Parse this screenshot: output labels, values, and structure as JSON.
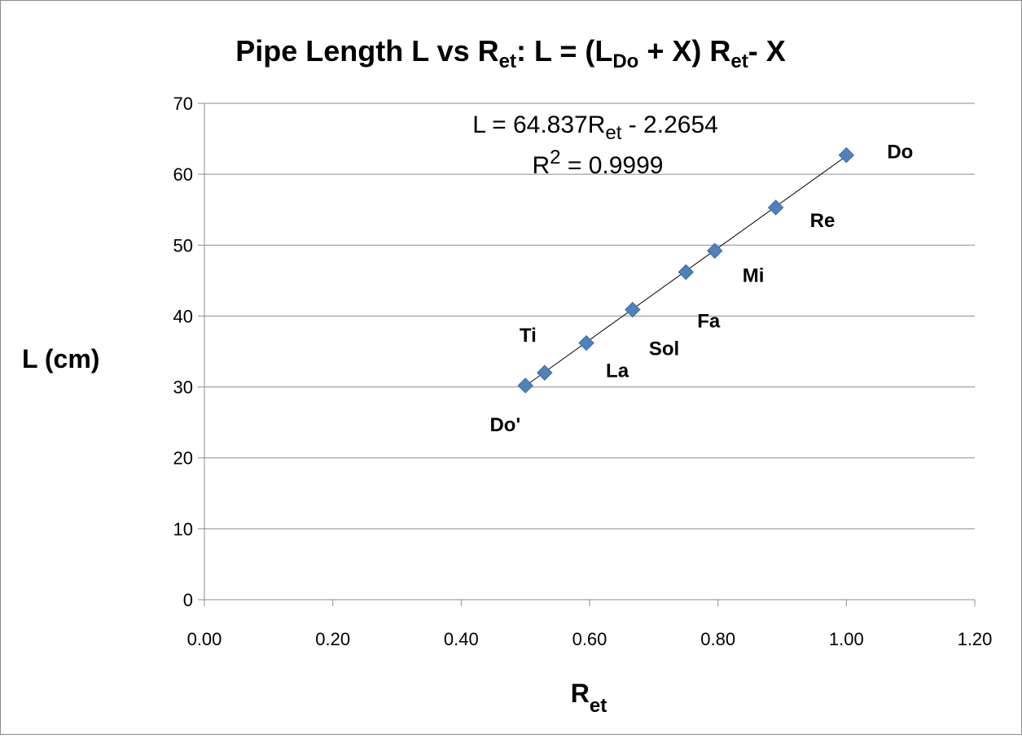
{
  "chart_data": {
    "type": "scatter",
    "title": {
      "parts": [
        {
          "text": "Pipe Length L vs R",
          "sub": false
        },
        {
          "text": "et",
          "sub": true
        },
        {
          "text": ": L = (L",
          "sub": false
        },
        {
          "text": "Do",
          "sub": true
        },
        {
          "text": " + X) R",
          "sub": false
        },
        {
          "text": "et",
          "sub": true
        },
        {
          "text": "- X",
          "sub": false
        }
      ]
    },
    "xlabel": {
      "main": "R",
      "sub": "et"
    },
    "ylabel": "L (cm)",
    "xlim": [
      0,
      1.2
    ],
    "ylim": [
      0,
      70
    ],
    "x_ticks": [
      "0.00",
      "0.20",
      "0.40",
      "0.60",
      "0.80",
      "1.00",
      "1.20"
    ],
    "y_ticks": [
      "0",
      "10",
      "20",
      "30",
      "40",
      "50",
      "60",
      "70"
    ],
    "grid": "horizontal",
    "legend": "none",
    "marker_color": "#4F81BD",
    "points": [
      {
        "label": "Do'",
        "x": 0.5,
        "y": 30.2
      },
      {
        "label": "Ti",
        "x": 0.53,
        "y": 32.0
      },
      {
        "label": "La",
        "x": 0.595,
        "y": 36.2
      },
      {
        "label": "Sol",
        "x": 0.667,
        "y": 40.9
      },
      {
        "label": "Fa",
        "x": 0.75,
        "y": 46.2
      },
      {
        "label": "Mi",
        "x": 0.795,
        "y": 49.2
      },
      {
        "label": "Re",
        "x": 0.89,
        "y": 55.3
      },
      {
        "label": "Do",
        "x": 1.0,
        "y": 62.7
      }
    ],
    "trendline": {
      "type": "linear",
      "slope": 64.837,
      "intercept": -2.2654,
      "x_range": [
        0.5,
        1.0
      ],
      "equation": {
        "pre": "L = 64.837R",
        "sub": "et",
        "post": " - 2.2654"
      },
      "r2": {
        "pre": "R",
        "sup": "2",
        "post": " = 0.9999"
      }
    }
  }
}
